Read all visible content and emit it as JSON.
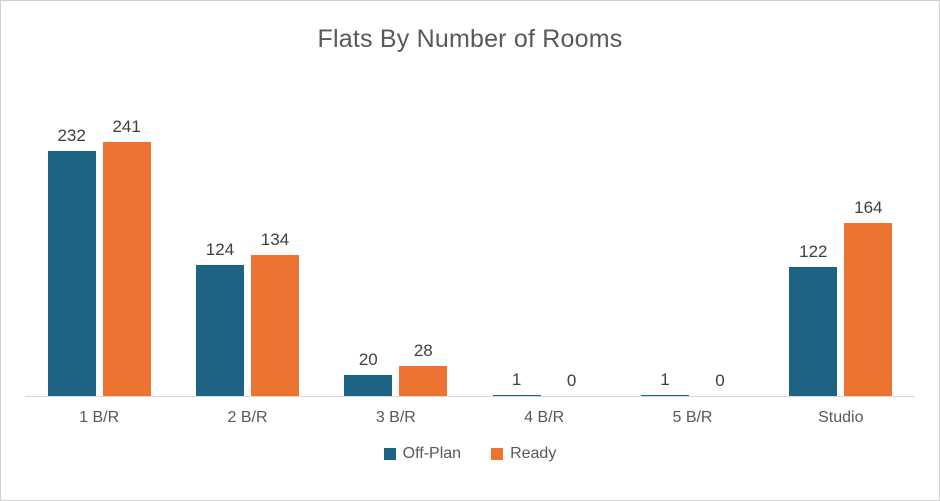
{
  "chart_data": {
    "type": "bar",
    "title": "Flats By Number of Rooms",
    "categories": [
      "1 B/R",
      "2 B/R",
      "3 B/R",
      "4 B/R",
      "5 B/R",
      "Studio"
    ],
    "series": [
      {
        "name": "Off-Plan",
        "color": "#1d6484",
        "values": [
          232,
          124,
          20,
          1,
          1,
          122
        ]
      },
      {
        "name": "Ready",
        "color": "#ec7331",
        "values": [
          241,
          134,
          28,
          0,
          0,
          164
        ]
      }
    ],
    "ylim": [
      0,
      260
    ],
    "xlabel": "",
    "ylabel": "",
    "grid": false,
    "legend_position": "bottom",
    "data_labels": true
  },
  "colors": {
    "title_text": "#595959",
    "value_label_text": "#3f3f3f",
    "axis_label_text": "#595959",
    "axis_line": "#d9d9d9",
    "frame_border": "#cfcfcf",
    "background": "#ffffff"
  }
}
